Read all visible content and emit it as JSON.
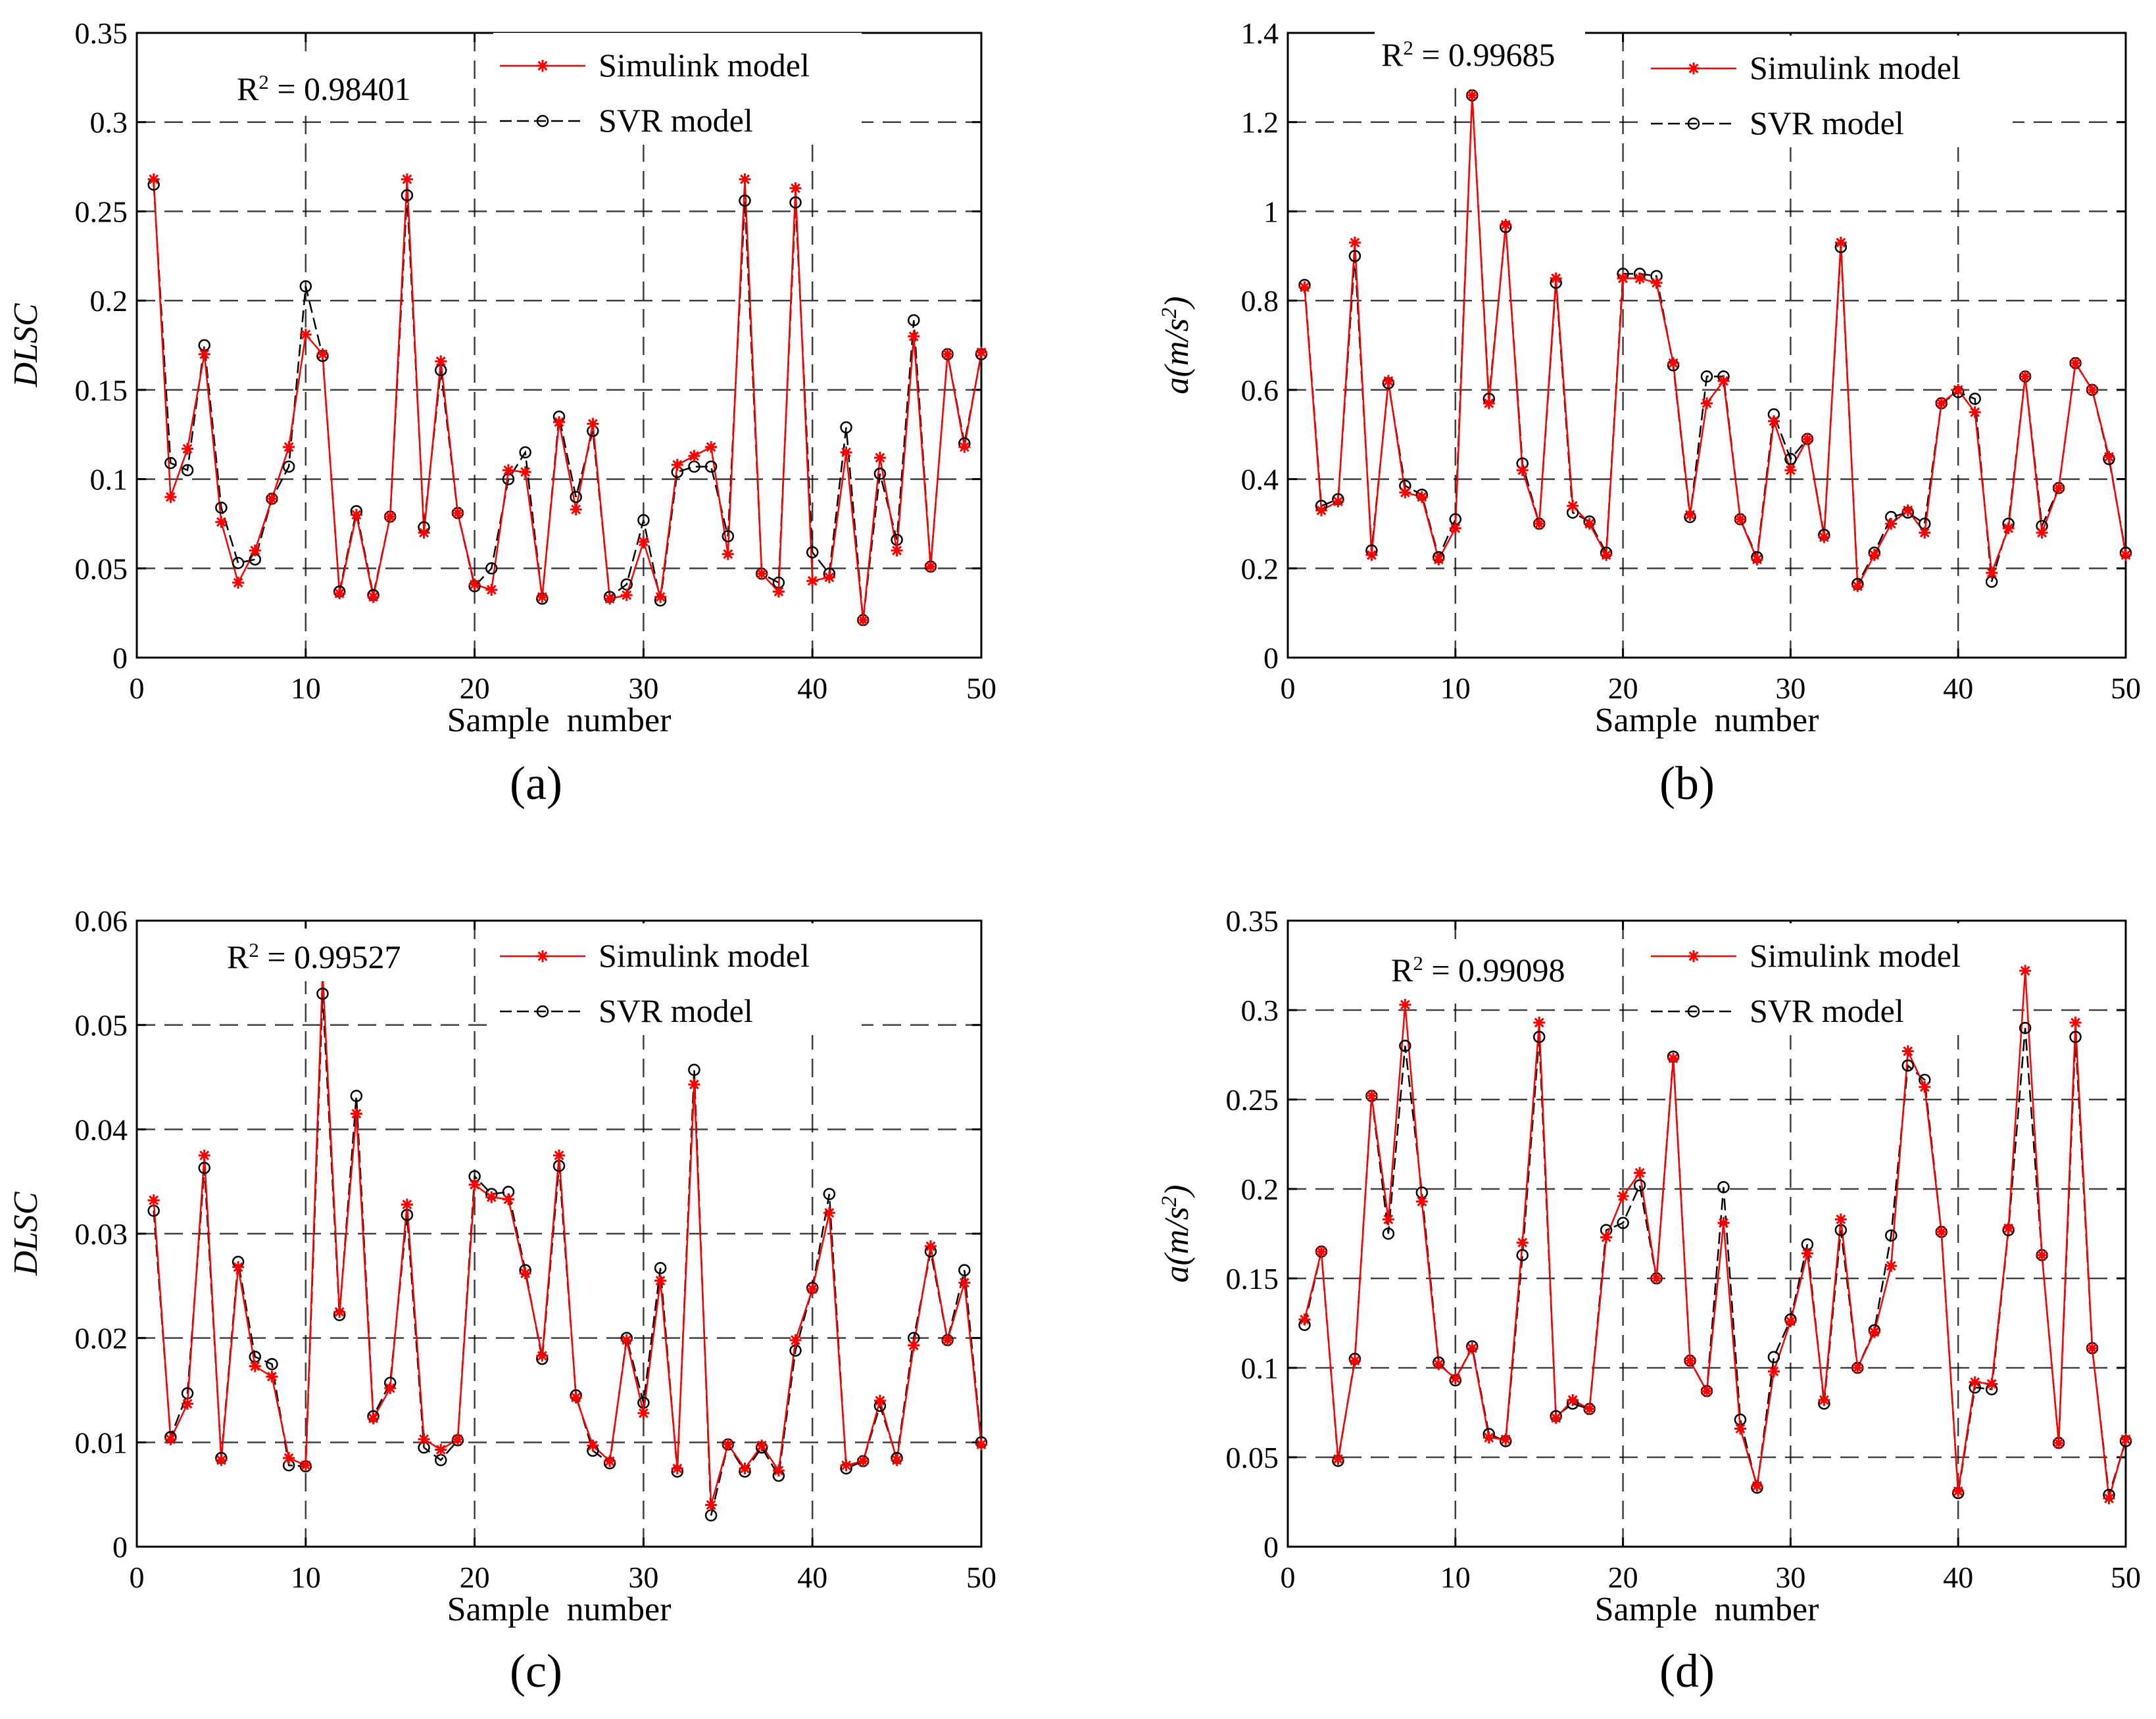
{
  "figure": {
    "panel_labels": [
      "(a)",
      "(b)",
      "(c)",
      "(d)"
    ]
  },
  "colors": {
    "simulink": "#ff0000",
    "svr": "#000000",
    "grid": "#000000",
    "axis": "#000000"
  },
  "chart_data": [
    {
      "id": "a",
      "type": "line",
      "title": "",
      "xlabel": "Sample  number",
      "ylabel": "DLSC",
      "xlim": [
        0,
        50
      ],
      "ylim": [
        0,
        0.35
      ],
      "xticks": [
        0,
        10,
        20,
        30,
        40,
        50
      ],
      "xtick_labels": [
        "0",
        "10",
        "20",
        "30",
        "40",
        "50"
      ],
      "yticks": [
        0,
        0.05,
        0.1,
        0.15,
        0.2,
        0.25,
        0.3,
        0.35
      ],
      "ytick_labels": [
        "0",
        "0.05",
        "0.1",
        "0.15",
        "0.2",
        "0.25",
        "0.3",
        "0.35"
      ],
      "annotation": "R² = 0.98401",
      "legend": [
        "Simulink model",
        "SVR model"
      ],
      "legend_position": "top-right",
      "x": [
        1,
        2,
        3,
        4,
        5,
        6,
        7,
        8,
        9,
        10,
        11,
        12,
        13,
        14,
        15,
        16,
        17,
        18,
        19,
        20,
        21,
        22,
        23,
        24,
        25,
        26,
        27,
        28,
        29,
        30,
        31,
        32,
        33,
        34,
        35,
        36,
        37,
        38,
        39,
        40,
        41,
        42,
        43,
        44,
        45,
        46,
        47,
        48,
        49,
        50
      ],
      "series": [
        {
          "name": "Simulink model",
          "values": [
            0.268,
            0.09,
            0.117,
            0.17,
            0.076,
            0.042,
            0.06,
            0.089,
            0.118,
            0.181,
            0.17,
            0.036,
            0.08,
            0.034,
            0.079,
            0.268,
            0.07,
            0.166,
            0.081,
            0.041,
            0.038,
            0.105,
            0.104,
            0.034,
            0.132,
            0.083,
            0.131,
            0.033,
            0.035,
            0.065,
            0.034,
            0.108,
            0.113,
            0.118,
            0.058,
            0.268,
            0.047,
            0.037,
            0.263,
            0.043,
            0.045,
            0.115,
            0.021,
            0.112,
            0.06,
            0.18,
            0.051,
            0.17,
            0.118,
            0.171
          ]
        },
        {
          "name": "SVR model",
          "values": [
            0.265,
            0.109,
            0.105,
            0.175,
            0.084,
            0.053,
            0.055,
            0.089,
            0.107,
            0.208,
            0.169,
            0.037,
            0.082,
            0.035,
            0.079,
            0.259,
            0.073,
            0.161,
            0.081,
            0.04,
            0.05,
            0.1,
            0.115,
            0.033,
            0.135,
            0.09,
            0.127,
            0.034,
            0.041,
            0.077,
            0.032,
            0.104,
            0.107,
            0.107,
            0.068,
            0.256,
            0.047,
            0.042,
            0.255,
            0.059,
            0.047,
            0.129,
            0.021,
            0.103,
            0.066,
            0.189,
            0.051,
            0.17,
            0.12,
            0.17
          ]
        }
      ]
    },
    {
      "id": "b",
      "type": "line",
      "title": "",
      "xlabel": "Sample  number",
      "ylabel": "a(m/s²)",
      "xlim": [
        0,
        50
      ],
      "ylim": [
        0,
        1.4
      ],
      "xticks": [
        0,
        10,
        20,
        30,
        40,
        50
      ],
      "xtick_labels": [
        "0",
        "10",
        "20",
        "30",
        "40",
        "50"
      ],
      "yticks": [
        0,
        0.2,
        0.4,
        0.6,
        0.8,
        1,
        1.2,
        1.4
      ],
      "ytick_labels": [
        "0",
        "0.2",
        "0.4",
        "0.6",
        "0.8",
        "1",
        "1.2",
        "1.4"
      ],
      "annotation": "R² = 0.99685",
      "legend": [
        "Simulink model",
        "SVR model"
      ],
      "legend_position": "top-right",
      "x": [
        1,
        2,
        3,
        4,
        5,
        6,
        7,
        8,
        9,
        10,
        11,
        12,
        13,
        14,
        15,
        16,
        17,
        18,
        19,
        20,
        21,
        22,
        23,
        24,
        25,
        26,
        27,
        28,
        29,
        30,
        31,
        32,
        33,
        34,
        35,
        36,
        37,
        38,
        39,
        40,
        41,
        42,
        43,
        44,
        45,
        46,
        47,
        48,
        49,
        50
      ],
      "series": [
        {
          "name": "Simulink model",
          "values": [
            0.83,
            0.33,
            0.35,
            0.93,
            0.23,
            0.62,
            0.37,
            0.36,
            0.22,
            0.29,
            1.26,
            0.57,
            0.97,
            0.42,
            0.3,
            0.85,
            0.34,
            0.3,
            0.23,
            0.85,
            0.85,
            0.84,
            0.66,
            0.32,
            0.57,
            0.62,
            0.31,
            0.22,
            0.53,
            0.42,
            0.49,
            0.27,
            0.93,
            0.16,
            0.23,
            0.3,
            0.33,
            0.28,
            0.57,
            0.6,
            0.55,
            0.19,
            0.29,
            0.63,
            0.28,
            0.38,
            0.66,
            0.6,
            0.45,
            0.23
          ]
        },
        {
          "name": "SVR model",
          "values": [
            0.835,
            0.34,
            0.355,
            0.9,
            0.24,
            0.615,
            0.385,
            0.365,
            0.225,
            0.31,
            1.26,
            0.58,
            0.965,
            0.435,
            0.3,
            0.84,
            0.325,
            0.305,
            0.235,
            0.86,
            0.86,
            0.855,
            0.655,
            0.315,
            0.63,
            0.63,
            0.31,
            0.225,
            0.545,
            0.445,
            0.49,
            0.275,
            0.92,
            0.165,
            0.235,
            0.315,
            0.325,
            0.3,
            0.57,
            0.595,
            0.58,
            0.17,
            0.3,
            0.63,
            0.295,
            0.38,
            0.66,
            0.6,
            0.445,
            0.235
          ]
        }
      ]
    },
    {
      "id": "c",
      "type": "line",
      "title": "",
      "xlabel": "Sample  number",
      "ylabel": "DLSC",
      "xlim": [
        0,
        50
      ],
      "ylim": [
        0,
        0.06
      ],
      "xticks": [
        0,
        10,
        20,
        30,
        40,
        50
      ],
      "xtick_labels": [
        "0",
        "10",
        "20",
        "30",
        "40",
        "50"
      ],
      "yticks": [
        0,
        0.01,
        0.02,
        0.03,
        0.04,
        0.05,
        0.06
      ],
      "ytick_labels": [
        "0",
        "0.01",
        "0.02",
        "0.03",
        "0.04",
        "0.05",
        "0.06"
      ],
      "annotation": "R² = 0.99527",
      "legend": [
        "Simulink model",
        "SVR model"
      ],
      "legend_position": "top-right",
      "x": [
        1,
        2,
        3,
        4,
        5,
        6,
        7,
        8,
        9,
        10,
        11,
        12,
        13,
        14,
        15,
        16,
        17,
        18,
        19,
        20,
        21,
        22,
        23,
        24,
        25,
        26,
        27,
        28,
        29,
        30,
        31,
        32,
        33,
        34,
        35,
        36,
        37,
        38,
        39,
        40,
        41,
        42,
        43,
        44,
        45,
        46,
        47,
        48,
        49,
        50
      ],
      "series": [
        {
          "name": "Simulink model",
          "values": [
            0.0332,
            0.0103,
            0.0137,
            0.0375,
            0.0083,
            0.0268,
            0.0173,
            0.0163,
            0.0085,
            0.0078,
            0.055,
            0.0225,
            0.0415,
            0.0123,
            0.0152,
            0.0328,
            0.0103,
            0.0093,
            0.0103,
            0.0347,
            0.0335,
            0.0333,
            0.0262,
            0.0183,
            0.0375,
            0.0143,
            0.0097,
            0.0082,
            0.0198,
            0.0128,
            0.0255,
            0.0075,
            0.0443,
            0.004,
            0.0098,
            0.0075,
            0.0097,
            0.0073,
            0.0198,
            0.0247,
            0.032,
            0.0078,
            0.0082,
            0.014,
            0.0083,
            0.0193,
            0.0288,
            0.0198,
            0.0253,
            0.0098
          ]
        },
        {
          "name": "SVR model",
          "values": [
            0.0322,
            0.0105,
            0.0147,
            0.0363,
            0.0085,
            0.0273,
            0.0182,
            0.0175,
            0.0078,
            0.0077,
            0.053,
            0.0222,
            0.0432,
            0.0125,
            0.0157,
            0.0318,
            0.0095,
            0.0083,
            0.0102,
            0.0355,
            0.0338,
            0.034,
            0.0265,
            0.018,
            0.0365,
            0.0145,
            0.0092,
            0.008,
            0.02,
            0.0138,
            0.0267,
            0.0072,
            0.0457,
            0.003,
            0.0098,
            0.0072,
            0.0095,
            0.0068,
            0.0188,
            0.0248,
            0.0338,
            0.0075,
            0.0082,
            0.0135,
            0.0085,
            0.02,
            0.0283,
            0.0198,
            0.0265,
            0.01
          ]
        }
      ]
    },
    {
      "id": "d",
      "type": "line",
      "title": "",
      "xlabel": "Sample  number",
      "ylabel": "a(m/s²)",
      "xlim": [
        0,
        50
      ],
      "ylim": [
        0,
        0.35
      ],
      "xticks": [
        0,
        10,
        20,
        30,
        40,
        50
      ],
      "xtick_labels": [
        "0",
        "10",
        "20",
        "30",
        "40",
        "50"
      ],
      "yticks": [
        0,
        0.05,
        0.1,
        0.15,
        0.2,
        0.25,
        0.3,
        0.35
      ],
      "ytick_labels": [
        "0",
        "0.05",
        "0.1",
        "0.15",
        "0.2",
        "0.25",
        "0.3",
        "0.35"
      ],
      "annotation": "R² = 0.99098",
      "legend": [
        "Simulink model",
        "SVR model"
      ],
      "legend_position": "top-right",
      "x": [
        1,
        2,
        3,
        4,
        5,
        6,
        7,
        8,
        9,
        10,
        11,
        12,
        13,
        14,
        15,
        16,
        17,
        18,
        19,
        20,
        21,
        22,
        23,
        24,
        25,
        26,
        27,
        28,
        29,
        30,
        31,
        32,
        33,
        34,
        35,
        36,
        37,
        38,
        39,
        40,
        41,
        42,
        43,
        44,
        45,
        46,
        47,
        48,
        49,
        50
      ],
      "series": [
        {
          "name": "Simulink model",
          "values": [
            0.127,
            0.165,
            0.049,
            0.104,
            0.252,
            0.183,
            0.303,
            0.193,
            0.102,
            0.094,
            0.111,
            0.061,
            0.06,
            0.17,
            0.293,
            0.072,
            0.082,
            0.077,
            0.173,
            0.196,
            0.209,
            0.15,
            0.273,
            0.104,
            0.087,
            0.181,
            0.066,
            0.034,
            0.098,
            0.126,
            0.164,
            0.082,
            0.183,
            0.1,
            0.12,
            0.157,
            0.277,
            0.257,
            0.176,
            0.031,
            0.092,
            0.091,
            0.178,
            0.322,
            0.163,
            0.058,
            0.293,
            0.111,
            0.027,
            0.06
          ]
        },
        {
          "name": "SVR model",
          "values": [
            0.124,
            0.165,
            0.048,
            0.105,
            0.252,
            0.175,
            0.28,
            0.198,
            0.103,
            0.093,
            0.112,
            0.063,
            0.059,
            0.163,
            0.285,
            0.073,
            0.08,
            0.077,
            0.177,
            0.181,
            0.202,
            0.15,
            0.274,
            0.104,
            0.087,
            0.201,
            0.071,
            0.033,
            0.106,
            0.127,
            0.169,
            0.08,
            0.177,
            0.1,
            0.121,
            0.174,
            0.269,
            0.261,
            0.176,
            0.03,
            0.089,
            0.088,
            0.177,
            0.29,
            0.163,
            0.058,
            0.285,
            0.111,
            0.029,
            0.059
          ]
        }
      ]
    }
  ]
}
